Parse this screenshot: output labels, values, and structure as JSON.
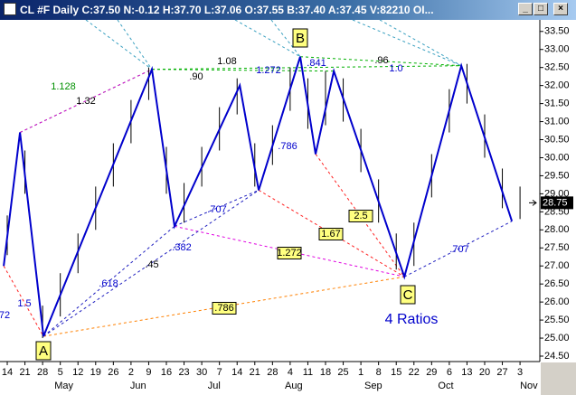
{
  "chart_data": {
    "type": "ohlc",
    "title": "CL #F Daily C:37.50 N:-0.12 H:37.70 L:37.06 O:37.55 B:37.40 A:37.45 V:82210 OI...",
    "xlim": [
      -0.41,
      30.12
    ],
    "ylim": [
      24.35,
      33.82
    ],
    "xticks": [
      {
        "value": 0,
        "label": "14"
      },
      {
        "value": 1,
        "label": "21"
      },
      {
        "value": 2,
        "label": "28"
      },
      {
        "value": 3,
        "label": "5"
      },
      {
        "value": 4,
        "label": "12"
      },
      {
        "value": 5,
        "label": "19"
      },
      {
        "value": 6,
        "label": "26"
      },
      {
        "value": 7,
        "label": "2"
      },
      {
        "value": 8,
        "label": "9"
      },
      {
        "value": 9,
        "label": "16"
      },
      {
        "value": 10,
        "label": "23"
      },
      {
        "value": 11,
        "label": "30"
      },
      {
        "value": 12,
        "label": "7"
      },
      {
        "value": 13,
        "label": "14"
      },
      {
        "value": 14,
        "label": "21"
      },
      {
        "value": 15,
        "label": "28"
      },
      {
        "value": 16,
        "label": "4"
      },
      {
        "value": 17,
        "label": "11"
      },
      {
        "value": 18,
        "label": "18"
      },
      {
        "value": 19,
        "label": "25"
      },
      {
        "value": 20,
        "label": "1"
      },
      {
        "value": 21,
        "label": "8"
      },
      {
        "value": 22,
        "label": "15"
      },
      {
        "value": 23,
        "label": "22"
      },
      {
        "value": 24,
        "label": "29"
      },
      {
        "value": 25,
        "label": "6"
      },
      {
        "value": 26,
        "label": "13"
      },
      {
        "value": 27,
        "label": "20"
      },
      {
        "value": 28,
        "label": "27"
      },
      {
        "value": 29,
        "label": "3"
      }
    ],
    "month_ticks": [
      {
        "value": 3.2,
        "label": "May"
      },
      {
        "value": 7.4,
        "label": "Jun"
      },
      {
        "value": 11.7,
        "label": "Jul"
      },
      {
        "value": 16.2,
        "label": "Aug"
      },
      {
        "value": 20.7,
        "label": "Sep"
      },
      {
        "value": 24.8,
        "label": "Oct"
      },
      {
        "value": 29.5,
        "label": "Nov"
      }
    ],
    "yticks": [
      {
        "value": 24.5,
        "label": "24.50"
      },
      {
        "value": 25,
        "label": "25.00"
      },
      {
        "value": 25.5,
        "label": "25.50"
      },
      {
        "value": 26,
        "label": "26.00"
      },
      {
        "value": 26.5,
        "label": "26.50"
      },
      {
        "value": 27,
        "label": "27.00"
      },
      {
        "value": 27.5,
        "label": "27.50"
      },
      {
        "value": 28,
        "label": "28.00"
      },
      {
        "value": 28.5,
        "label": "28.50"
      },
      {
        "value": 29,
        "label": "29.00"
      },
      {
        "value": 29.5,
        "label": "29.50"
      },
      {
        "value": 30,
        "label": "30.00"
      },
      {
        "value": 30.5,
        "label": "30.50"
      },
      {
        "value": 31,
        "label": "31.00"
      },
      {
        "value": 31.5,
        "label": "31.50"
      },
      {
        "value": 32,
        "label": "32.00"
      },
      {
        "value": 32.5,
        "label": "32.50"
      },
      {
        "value": 33,
        "label": "33.00"
      },
      {
        "value": 33.5,
        "label": "33.50"
      }
    ],
    "bars": {
      "color": "#000000",
      "x": [
        0,
        1,
        2,
        3,
        4,
        5,
        6,
        7,
        8,
        9,
        10,
        11,
        12,
        13,
        14,
        15,
        16,
        17,
        18,
        19,
        20,
        21,
        22,
        23,
        24,
        25,
        26,
        27,
        28,
        29
      ],
      "high": [
        28.4,
        30.2,
        25.9,
        26.8,
        27.9,
        29.2,
        30.4,
        31.6,
        32.5,
        30.3,
        29.3,
        30.3,
        31.4,
        32.2,
        30.4,
        30.9,
        32.5,
        32.2,
        32.4,
        32.2,
        30.8,
        29.4,
        27.9,
        28.2,
        30.1,
        31.9,
        32.6,
        31.2,
        29.7,
        29.2
      ],
      "low": [
        27.3,
        29.0,
        25.0,
        25.6,
        26.8,
        28.0,
        29.2,
        30.4,
        31.6,
        29.0,
        28.2,
        29.2,
        30.2,
        31.2,
        29.2,
        29.8,
        31.3,
        30.8,
        30.9,
        31.0,
        29.6,
        28.2,
        26.9,
        27.0,
        28.9,
        30.7,
        31.5,
        30.0,
        28.6,
        28.3
      ]
    },
    "zigzag": {
      "color": "#0000cc",
      "x": [
        -0.2,
        0.72,
        2.05,
        8.18,
        9.46,
        13.15,
        14.22,
        16.57,
        17.44,
        18.47,
        22.46,
        25.68,
        28.54
      ],
      "values": [
        27.0,
        30.7,
        25.05,
        32.45,
        28.1,
        32.0,
        29.1,
        32.8,
        30.1,
        32.4,
        26.7,
        32.55,
        28.24
      ]
    },
    "last_price": 28.75,
    "points": [
      "A",
      "B",
      "C"
    ],
    "caption": "4 Ratios",
    "annotations": [
      "1.128",
      "1.32",
      ".90",
      "1.08",
      "1.272",
      ".841",
      ".96",
      "1.0",
      ".786",
      ".707",
      ".382",
      ".45",
      ".618",
      "1.5",
      "72",
      "2.5",
      "1.67",
      "1.272",
      ".786",
      ".707"
    ]
  }
}
